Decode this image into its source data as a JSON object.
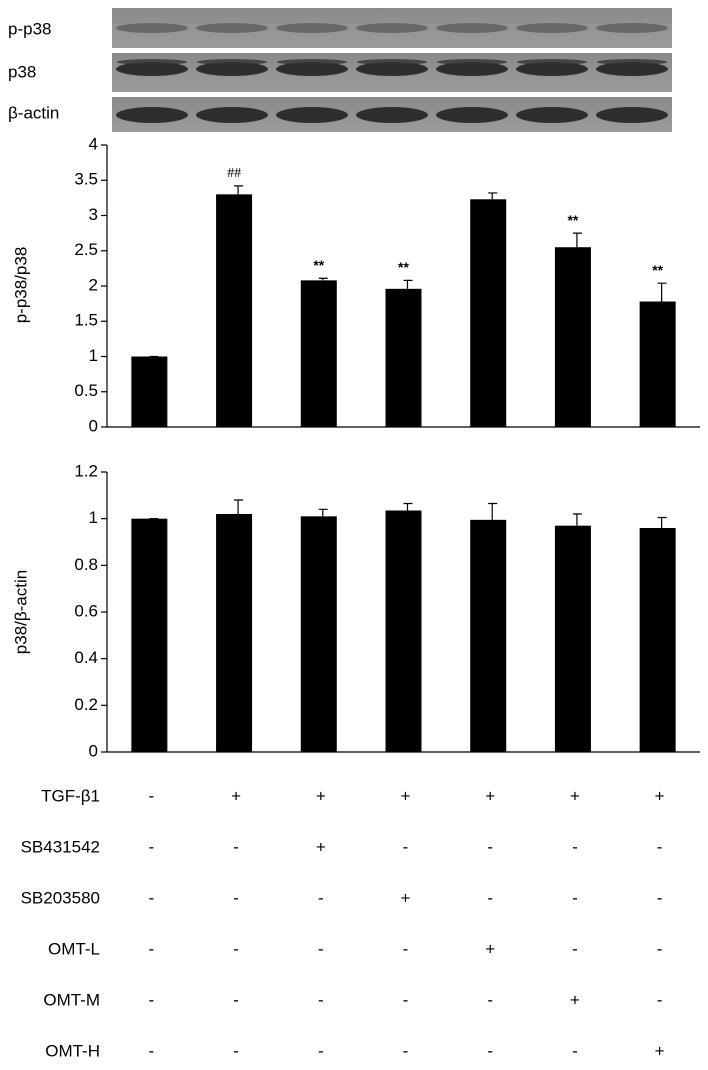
{
  "blot": {
    "labels": [
      "p-p38",
      "p38",
      "β-actin"
    ]
  },
  "chart_data": [
    {
      "type": "bar",
      "ylabel": "p-p38/p38",
      "color": "#000000",
      "values": [
        1,
        3.3,
        2.08,
        1.96,
        3.23,
        2.55,
        1.78
      ],
      "errors": [
        0,
        0.12,
        0.03,
        0.12,
        0.09,
        0.2,
        0.26
      ],
      "annotations": [
        null,
        "##",
        "**",
        "**",
        null,
        "**",
        "**"
      ],
      "ylim": [
        0,
        4
      ],
      "yticks": [
        0,
        0.5,
        1,
        1.5,
        2,
        2.5,
        3,
        3.5,
        4
      ]
    },
    {
      "type": "bar",
      "ylabel": "p38/β-actin",
      "color": "#000000",
      "values": [
        1,
        1.02,
        1.01,
        1.035,
        0.995,
        0.97,
        0.96
      ],
      "errors": [
        0,
        0.06,
        0.03,
        0.03,
        0.07,
        0.05,
        0.045
      ],
      "ylim": [
        0,
        1.2
      ],
      "yticks": [
        0,
        0.2,
        0.4,
        0.6,
        0.8,
        1,
        1.2
      ]
    }
  ],
  "treatments": {
    "rows": [
      {
        "label": "TGF-β1",
        "values": [
          "-",
          "+",
          "+",
          "+",
          "+",
          "+",
          "+"
        ]
      },
      {
        "label": "SB431542",
        "values": [
          "-",
          "-",
          "+",
          "-",
          "-",
          "-",
          "-"
        ]
      },
      {
        "label": "SB203580",
        "values": [
          "-",
          "-",
          "-",
          "+",
          "-",
          "-",
          "-"
        ]
      },
      {
        "label": "OMT-L",
        "values": [
          "-",
          "-",
          "-",
          "-",
          "+",
          "-",
          "-"
        ]
      },
      {
        "label": "OMT-M",
        "values": [
          "-",
          "-",
          "-",
          "-",
          "-",
          "+",
          "-"
        ]
      },
      {
        "label": "OMT-H",
        "values": [
          "-",
          "-",
          "-",
          "-",
          "-",
          "-",
          "+"
        ]
      }
    ]
  }
}
